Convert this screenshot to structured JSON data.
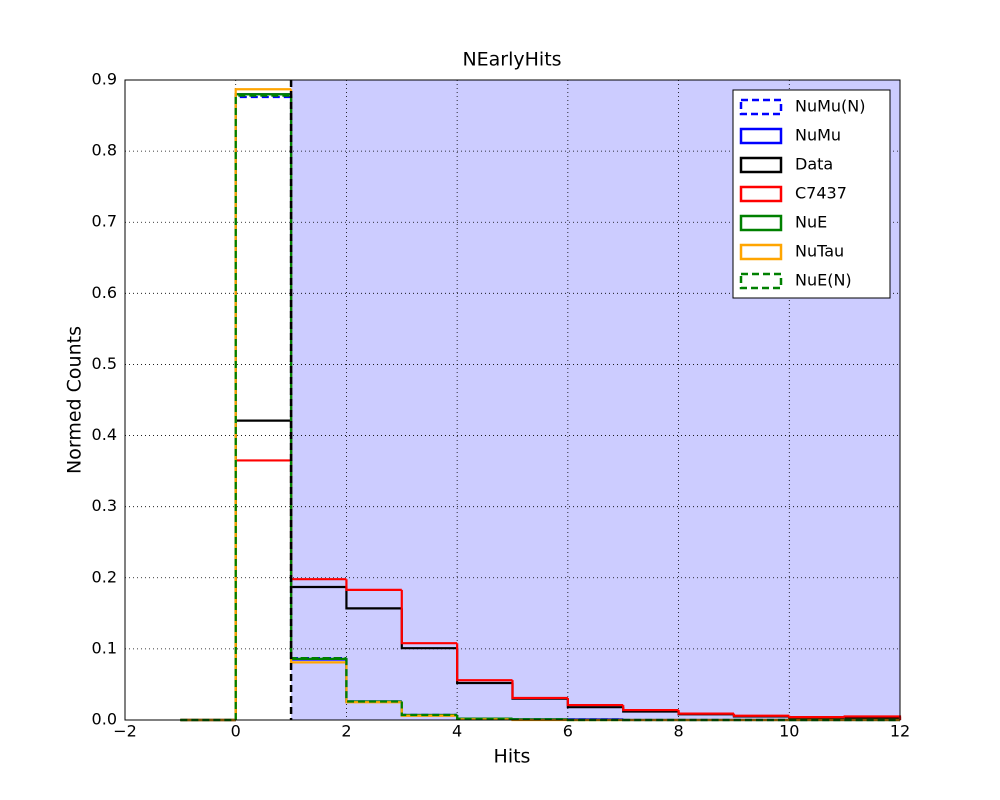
{
  "chart_data": {
    "type": "histogram",
    "title": "NEarlyHits",
    "x_label": "Hits",
    "y_label": "Normed Counts",
    "bins": [
      -1,
      0,
      1,
      2,
      3,
      4,
      5,
      6,
      7,
      8,
      9,
      10,
      11,
      12
    ],
    "series": [
      {
        "name": "NuMu(N)",
        "color": "#0000ff",
        "dashed": true,
        "values": [
          0,
          0.876,
          0.087,
          0.026,
          0.007,
          0.002,
          0.001,
          0.001,
          0,
          0,
          0,
          0,
          0
        ]
      },
      {
        "name": "NuMu",
        "color": "#0000ff",
        "dashed": false,
        "values": [
          0,
          0.88,
          0.085,
          0.026,
          0.007,
          0.002,
          0.001,
          0.001,
          0,
          0,
          0,
          0,
          0
        ]
      },
      {
        "name": "Data",
        "color": "#000000",
        "dashed": false,
        "values": [
          0,
          0.421,
          0.187,
          0.157,
          0.101,
          0.052,
          0.03,
          0.018,
          0.012,
          0.008,
          0.005,
          0.003,
          0.003
        ]
      },
      {
        "name": "C7437",
        "color": "#ff0000",
        "dashed": false,
        "values": [
          0,
          0.365,
          0.198,
          0.183,
          0.108,
          0.056,
          0.031,
          0.021,
          0.014,
          0.009,
          0.006,
          0.004,
          0.005
        ]
      },
      {
        "name": "NuE",
        "color": "#008000",
        "dashed": false,
        "values": [
          0,
          0.88,
          0.086,
          0.026,
          0.007,
          0.002,
          0.001,
          0,
          0,
          0,
          0,
          0,
          0
        ]
      },
      {
        "name": "NuTau",
        "color": "#ffa500",
        "dashed": false,
        "values": [
          0,
          0.887,
          0.081,
          0.025,
          0.006,
          0.001,
          0,
          0,
          0,
          0,
          0,
          0,
          0
        ]
      },
      {
        "name": "NuE(N)",
        "color": "#008000",
        "dashed": true,
        "values": [
          0,
          0.878,
          0.087,
          0.026,
          0.007,
          0.002,
          0.001,
          0,
          0,
          0,
          0,
          0,
          0
        ]
      }
    ],
    "cut_line": 1,
    "shade_color": "#ccccff",
    "xlim": [
      -2,
      12
    ],
    "xticks": [
      {
        "value": -2,
        "label": "−2"
      },
      0,
      2,
      4,
      6,
      8,
      10,
      12
    ],
    "ylim": [
      0,
      0.9
    ],
    "yticks": [
      {
        "value": 0,
        "label": "0.0"
      },
      0.1,
      0.2,
      0.3,
      0.4,
      0.5,
      0.6,
      0.7,
      0.8,
      0.9
    ],
    "grid": true,
    "legend": "upper right"
  }
}
